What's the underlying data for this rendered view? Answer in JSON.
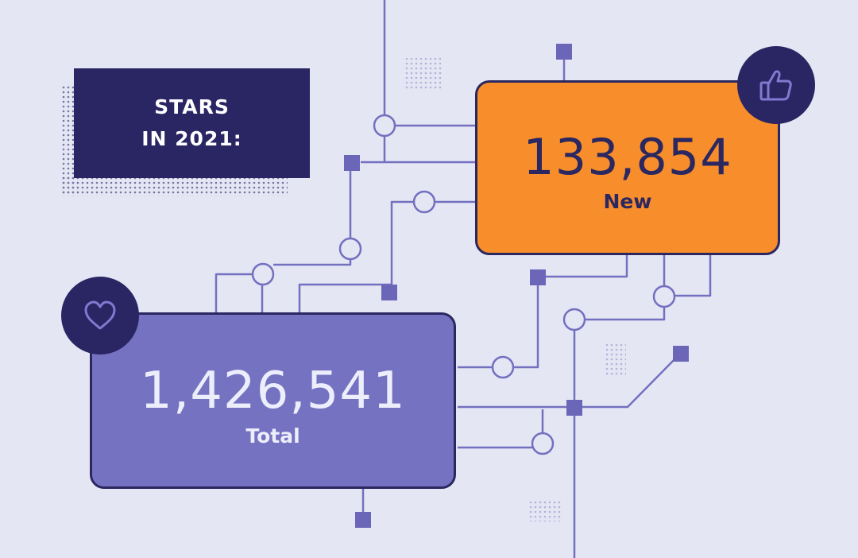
{
  "title": {
    "line1": "STARS",
    "line2": "IN 2021:"
  },
  "cards": {
    "new": {
      "value": "133,854",
      "label": "New"
    },
    "total": {
      "value": "1,426,541",
      "label": "Total"
    }
  },
  "icons": {
    "new": "thumbs-up-icon",
    "total": "heart-icon"
  },
  "colors": {
    "background": "#e5e6f4",
    "navy": "#2a2563",
    "orange": "#f78e2b",
    "purple": "#7572c2",
    "line": "#7470c0"
  }
}
